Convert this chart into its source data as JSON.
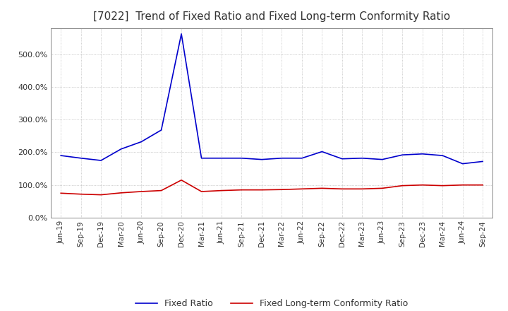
{
  "title": "[7022]  Trend of Fixed Ratio and Fixed Long-term Conformity Ratio",
  "x_labels": [
    "Jun-19",
    "Sep-19",
    "Dec-19",
    "Mar-20",
    "Jun-20",
    "Sep-20",
    "Dec-20",
    "Mar-21",
    "Jun-21",
    "Sep-21",
    "Dec-21",
    "Mar-22",
    "Jun-22",
    "Sep-22",
    "Dec-22",
    "Mar-23",
    "Jun-23",
    "Sep-23",
    "Dec-23",
    "Mar-24",
    "Jun-24",
    "Sep-24"
  ],
  "fixed_ratio": [
    190,
    182,
    175,
    210,
    232,
    268,
    562,
    182,
    182,
    182,
    178,
    182,
    182,
    202,
    180,
    182,
    178,
    192,
    195,
    190,
    165,
    172
  ],
  "fixed_lt_ratio": [
    75,
    72,
    70,
    76,
    80,
    83,
    115,
    80,
    83,
    85,
    85,
    86,
    88,
    90,
    88,
    88,
    90,
    98,
    100,
    98,
    100,
    100
  ],
  "fixed_ratio_color": "#0000cc",
  "fixed_lt_ratio_color": "#cc0000",
  "ylim": [
    0,
    580
  ],
  "yticks": [
    0,
    100,
    200,
    300,
    400,
    500
  ],
  "ytick_labels": [
    "0.0%",
    "100.0%",
    "200.0%",
    "300.0%",
    "400.0%",
    "500.0%"
  ],
  "grid_color": "#aaaaaa",
  "background_color": "#ffffff",
  "title_fontsize": 11,
  "legend_labels": [
    "Fixed Ratio",
    "Fixed Long-term Conformity Ratio"
  ]
}
